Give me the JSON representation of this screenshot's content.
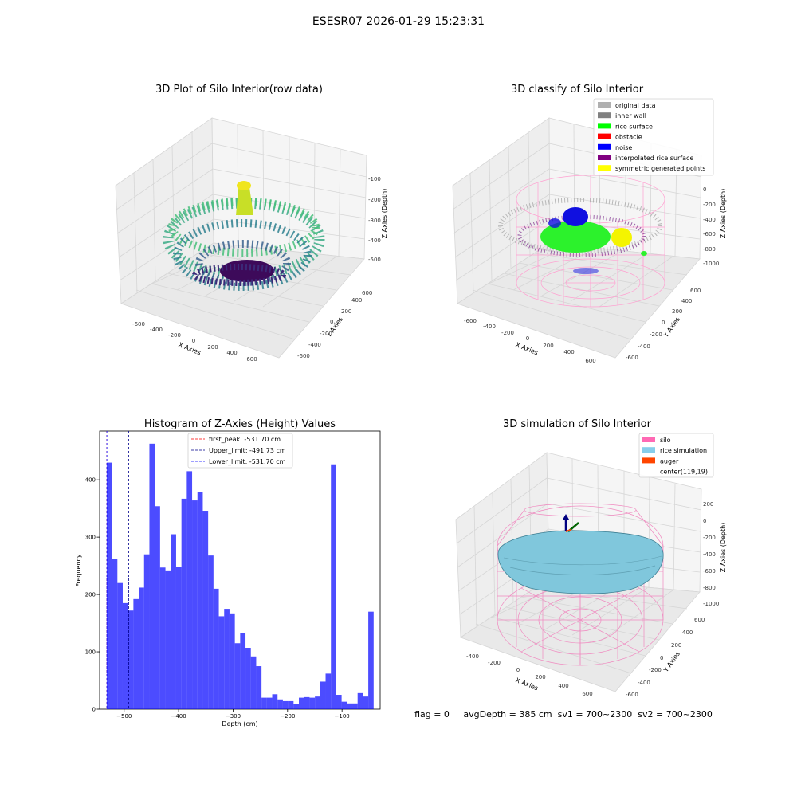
{
  "figure": {
    "suptitle": "ESESR07 2026-01-29 15:23:31",
    "footer": "flag = 0     avgDepth = 385 cm  sv1 = 700~2300  sv2 = 700~2300"
  },
  "panels": {
    "raw": {
      "title": "3D Plot of Silo Interior(row data)",
      "xlabel": "X Axies",
      "ylabel": "Y Axies",
      "zlabel": "Z Axies (Depth)",
      "xticks": [
        "-600",
        "-400",
        "-200",
        "0",
        "200",
        "400",
        "600"
      ],
      "yticks": [
        "-600",
        "-400",
        "-200",
        "0",
        "200",
        "400",
        "600"
      ],
      "zticks": [
        "-100",
        "-200",
        "-300",
        "-400",
        "-500"
      ]
    },
    "classify": {
      "title": "3D classify of Silo Interior",
      "xlabel": "X Axies",
      "ylabel": "Y Axies",
      "zlabel": "Z Axies (Depth)",
      "xticks": [
        "-600",
        "-400",
        "-200",
        "0",
        "200",
        "400",
        "600"
      ],
      "yticks": [
        "-600",
        "-400",
        "-200",
        "0",
        "200",
        "400",
        "600"
      ],
      "zticks": [
        "0",
        "-200",
        "-400",
        "-600",
        "-800",
        "-1000"
      ],
      "legend": [
        {
          "label": "original data",
          "color": "#b0b0b0"
        },
        {
          "label": "inner wall",
          "color": "#808080"
        },
        {
          "label": "rice surface",
          "color": "#00ff00"
        },
        {
          "label": "obstacle",
          "color": "#ff0000"
        },
        {
          "label": "noise",
          "color": "#0000ff"
        },
        {
          "label": "interpolated rice surface",
          "color": "#800080"
        },
        {
          "label": "symmetric generated points",
          "color": "#ffff00"
        }
      ]
    },
    "simulation": {
      "title": "3D simulation of Silo Interior",
      "xlabel": "X Axies",
      "ylabel": "Y Axies",
      "zlabel": "Z Axies (Depth)",
      "xticks": [
        "-400",
        "-200",
        "0",
        "200",
        "400",
        "600"
      ],
      "yticks": [
        "-600",
        "-400",
        "-200",
        "0",
        "200",
        "400",
        "600"
      ],
      "zticks": [
        "200",
        "0",
        "-200",
        "-400",
        "-600",
        "-800",
        "-1000"
      ],
      "legend": [
        {
          "label": "silo",
          "color": "#ff69b4"
        },
        {
          "label": "rice simulation",
          "color": "#87ceeb"
        },
        {
          "label": "auger",
          "color": "#ff4500"
        },
        {
          "label": "center(119,19)",
          "color": ""
        }
      ]
    }
  },
  "chart_data": {
    "type": "bar",
    "title": "Histogram of Z-Axies (Height) Values",
    "xlabel": "Depth (cm)",
    "ylabel": "Frequency",
    "xlim": [
      -545,
      -30
    ],
    "ylim": [
      0,
      485
    ],
    "xticks": [
      -500,
      -400,
      -300,
      -200,
      -100
    ],
    "yticks": [
      0,
      100,
      200,
      300,
      400
    ],
    "bin_start": -532,
    "bin_width": 9.8,
    "values": [
      430,
      262,
      220,
      185,
      172,
      192,
      212,
      270,
      463,
      354,
      247,
      242,
      305,
      248,
      367,
      415,
      364,
      378,
      346,
      268,
      210,
      162,
      175,
      167,
      115,
      133,
      107,
      92,
      75,
      20,
      20,
      26,
      17,
      14,
      14,
      9,
      20,
      21,
      20,
      22,
      48,
      62,
      427,
      25,
      13,
      10,
      10,
      28,
      22,
      170
    ],
    "color": "#0000ff",
    "vlines": [
      {
        "label": "first_peak: -531.70 cm",
        "x": -531.7,
        "color": "#ff0000"
      },
      {
        "label": "Upper_limit: -491.73 cm",
        "x": -491.73,
        "color": "#00008b"
      },
      {
        "label": "Lower_limit: -531.70 cm",
        "x": -531.7,
        "color": "#0000ff"
      }
    ]
  }
}
